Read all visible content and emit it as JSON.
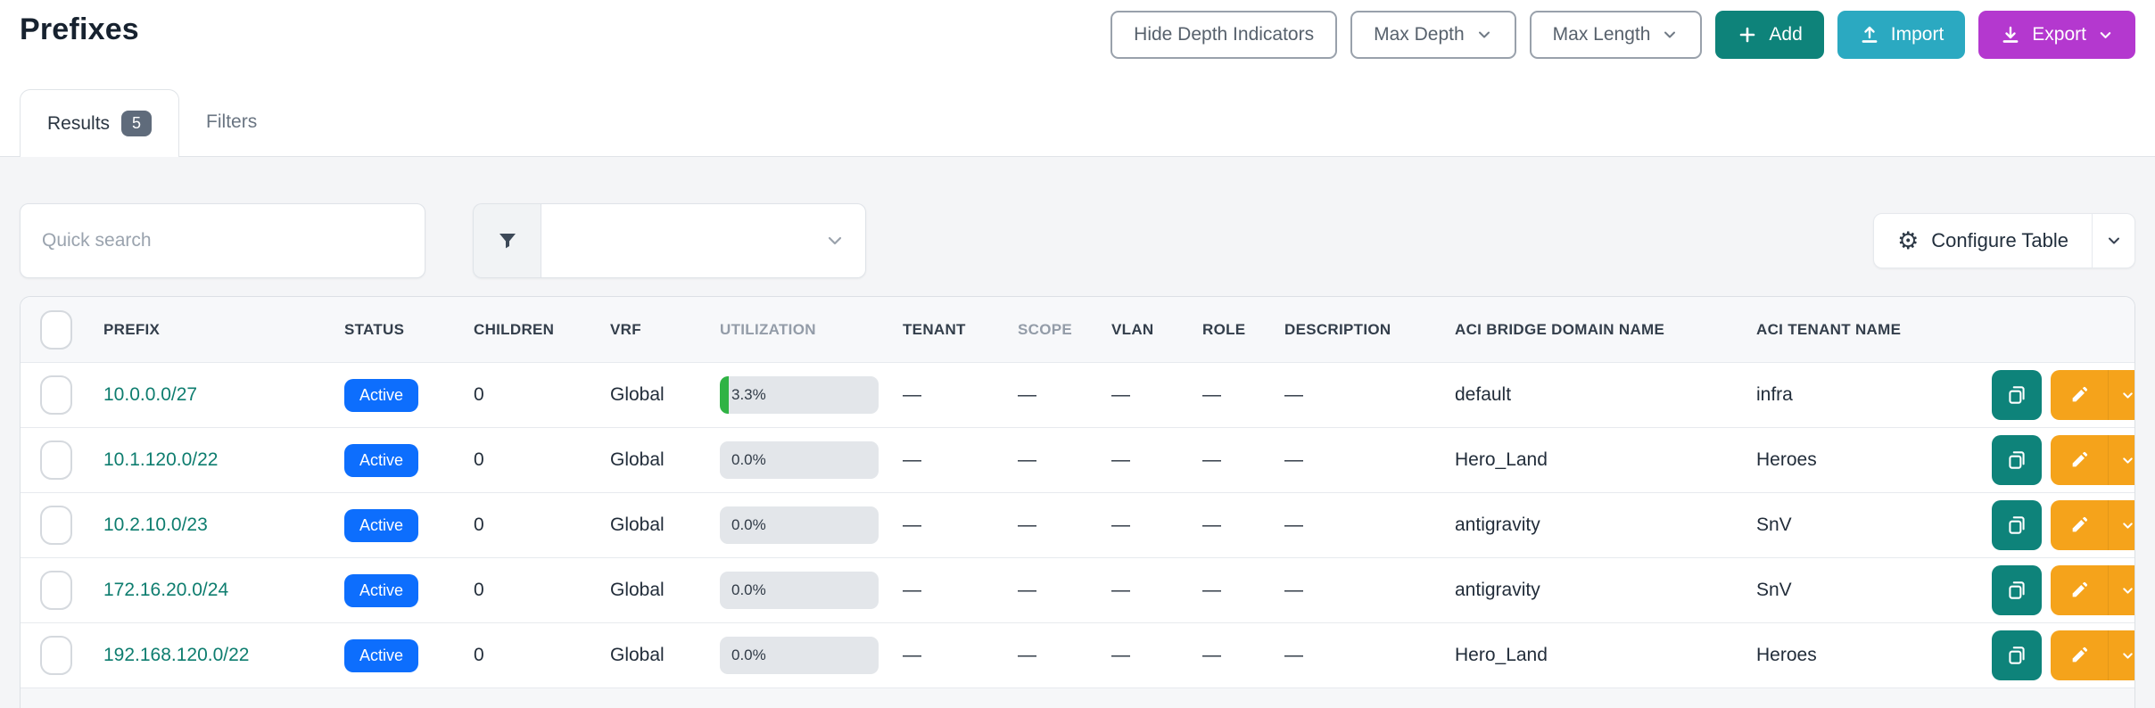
{
  "page": {
    "title": "Prefixes"
  },
  "header_actions": {
    "hide_depth_label": "Hide Depth Indicators",
    "max_depth_label": "Max Depth",
    "max_length_label": "Max Length",
    "add_label": "Add",
    "import_label": "Import",
    "export_label": "Export"
  },
  "tabs": [
    {
      "label": "Results",
      "count": "5",
      "active": true
    },
    {
      "label": "Filters",
      "active": false
    }
  ],
  "filters_bar": {
    "quick_search_placeholder": "Quick search"
  },
  "table_controls": {
    "configure_label": "Configure Table"
  },
  "table": {
    "columns": [
      {
        "label": "PREFIX"
      },
      {
        "label": "STATUS"
      },
      {
        "label": "CHILDREN"
      },
      {
        "label": "VRF"
      },
      {
        "label": "UTILIZATION",
        "muted": true
      },
      {
        "label": "TENANT"
      },
      {
        "label": "SCOPE",
        "muted": true
      },
      {
        "label": "VLAN"
      },
      {
        "label": "ROLE"
      },
      {
        "label": "DESCRIPTION"
      },
      {
        "label": "ACI BRIDGE DOMAIN NAME"
      },
      {
        "label": "ACI TENANT NAME"
      }
    ],
    "rows": [
      {
        "prefix": "10.0.0.0/27",
        "status": "Active",
        "children": "0",
        "vrf": "Global",
        "utilization": "3.3%",
        "utilization_pct": 3.3,
        "tenant": "—",
        "scope": "—",
        "vlan": "—",
        "role": "—",
        "description": "—",
        "aci_bridge_domain_name": "default",
        "aci_tenant_name": "infra"
      },
      {
        "prefix": "10.1.120.0/22",
        "status": "Active",
        "children": "0",
        "vrf": "Global",
        "utilization": "0.0%",
        "utilization_pct": 0,
        "tenant": "—",
        "scope": "—",
        "vlan": "—",
        "role": "—",
        "description": "—",
        "aci_bridge_domain_name": "Hero_Land",
        "aci_tenant_name": "Heroes"
      },
      {
        "prefix": "10.2.10.0/23",
        "status": "Active",
        "children": "0",
        "vrf": "Global",
        "utilization": "0.0%",
        "utilization_pct": 0,
        "tenant": "—",
        "scope": "—",
        "vlan": "—",
        "role": "—",
        "description": "—",
        "aci_bridge_domain_name": "antigravity",
        "aci_tenant_name": "SnV"
      },
      {
        "prefix": "172.16.20.0/24",
        "status": "Active",
        "children": "0",
        "vrf": "Global",
        "utilization": "0.0%",
        "utilization_pct": 0,
        "tenant": "—",
        "scope": "—",
        "vlan": "—",
        "role": "—",
        "description": "—",
        "aci_bridge_domain_name": "antigravity",
        "aci_tenant_name": "SnV"
      },
      {
        "prefix": "192.168.120.0/22",
        "status": "Active",
        "children": "0",
        "vrf": "Global",
        "utilization": "0.0%",
        "utilization_pct": 0,
        "tenant": "—",
        "scope": "—",
        "vlan": "—",
        "role": "—",
        "description": "—",
        "aci_bridge_domain_name": "Hero_Land",
        "aci_tenant_name": "Heroes"
      }
    ]
  },
  "colors": {
    "status_active": "#0d6efd",
    "add_button": "#0e837a",
    "import_button": "#2ba9c1",
    "export_button": "#b438cf",
    "edit_button": "#f5a31b",
    "clone_button": "#0e837a",
    "prefix_link": "#0e7d6f",
    "utilization_fill": "#2fb344",
    "tab_count_badge": "#5f6b7b"
  },
  "icons": {
    "add": "plus-icon",
    "import": "upload-icon",
    "export": "download-icon",
    "configure": "gear-icon",
    "filter": "funnel-icon",
    "row_copy": "clone-icon",
    "row_edit": "pencil-icon",
    "dropdowns": "chevron-down-icon"
  }
}
